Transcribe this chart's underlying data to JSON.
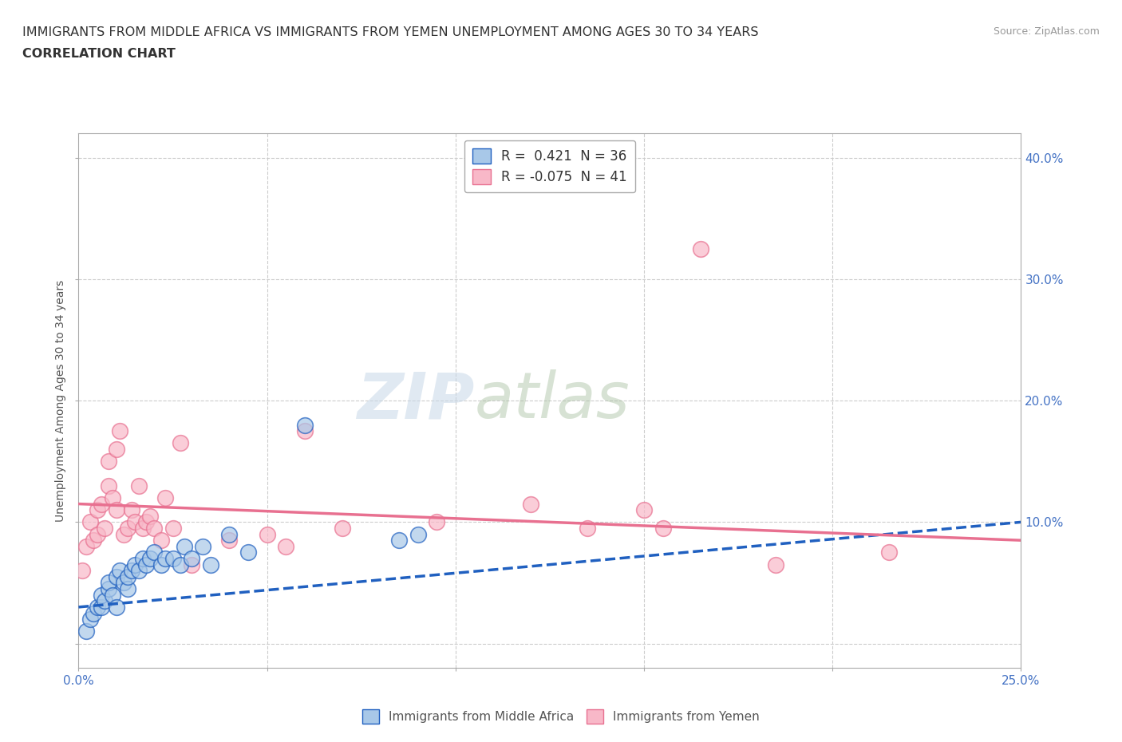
{
  "title_line1": "IMMIGRANTS FROM MIDDLE AFRICA VS IMMIGRANTS FROM YEMEN UNEMPLOYMENT AMONG AGES 30 TO 34 YEARS",
  "title_line2": "CORRELATION CHART",
  "source_text": "Source: ZipAtlas.com",
  "ylabel": "Unemployment Among Ages 30 to 34 years",
  "xlim": [
    0.0,
    0.25
  ],
  "ylim": [
    -0.02,
    0.42
  ],
  "x_ticks": [
    0.0,
    0.05,
    0.1,
    0.15,
    0.2,
    0.25
  ],
  "x_tick_labels": [
    "0.0%",
    "",
    "",
    "",
    "",
    "25.0%"
  ],
  "y_ticks": [
    0.0,
    0.1,
    0.2,
    0.3,
    0.4
  ],
  "y_tick_labels": [
    "",
    "10.0%",
    "20.0%",
    "30.0%",
    "40.0%"
  ],
  "legend_R_blue": "0.421",
  "legend_N_blue": "36",
  "legend_R_pink": "-0.075",
  "legend_N_pink": "41",
  "blue_color": "#a8c8e8",
  "pink_color": "#f8b8c8",
  "blue_line_color": "#2060c0",
  "pink_line_color": "#e87090",
  "watermark_zip": "ZIP",
  "watermark_atlas": "atlas",
  "blue_scatter_x": [
    0.002,
    0.003,
    0.004,
    0.005,
    0.006,
    0.006,
    0.007,
    0.008,
    0.008,
    0.009,
    0.01,
    0.01,
    0.011,
    0.012,
    0.013,
    0.013,
    0.014,
    0.015,
    0.016,
    0.017,
    0.018,
    0.019,
    0.02,
    0.022,
    0.023,
    0.025,
    0.027,
    0.028,
    0.03,
    0.033,
    0.035,
    0.04,
    0.045,
    0.06,
    0.085,
    0.09
  ],
  "blue_scatter_y": [
    0.01,
    0.02,
    0.025,
    0.03,
    0.03,
    0.04,
    0.035,
    0.045,
    0.05,
    0.04,
    0.03,
    0.055,
    0.06,
    0.05,
    0.045,
    0.055,
    0.06,
    0.065,
    0.06,
    0.07,
    0.065,
    0.07,
    0.075,
    0.065,
    0.07,
    0.07,
    0.065,
    0.08,
    0.07,
    0.08,
    0.065,
    0.09,
    0.075,
    0.18,
    0.085,
    0.09
  ],
  "pink_scatter_x": [
    0.001,
    0.002,
    0.003,
    0.004,
    0.005,
    0.005,
    0.006,
    0.007,
    0.008,
    0.008,
    0.009,
    0.01,
    0.01,
    0.011,
    0.012,
    0.013,
    0.014,
    0.015,
    0.016,
    0.017,
    0.018,
    0.019,
    0.02,
    0.022,
    0.023,
    0.025,
    0.027,
    0.03,
    0.04,
    0.05,
    0.055,
    0.06,
    0.07,
    0.095,
    0.12,
    0.135,
    0.15,
    0.155,
    0.165,
    0.185,
    0.215
  ],
  "pink_scatter_y": [
    0.06,
    0.08,
    0.1,
    0.085,
    0.09,
    0.11,
    0.115,
    0.095,
    0.13,
    0.15,
    0.12,
    0.11,
    0.16,
    0.175,
    0.09,
    0.095,
    0.11,
    0.1,
    0.13,
    0.095,
    0.1,
    0.105,
    0.095,
    0.085,
    0.12,
    0.095,
    0.165,
    0.065,
    0.085,
    0.09,
    0.08,
    0.175,
    0.095,
    0.1,
    0.115,
    0.095,
    0.11,
    0.095,
    0.325,
    0.065,
    0.075
  ],
  "blue_trend_x": [
    0.0,
    0.25
  ],
  "blue_trend_y": [
    0.03,
    0.1
  ],
  "pink_trend_x": [
    0.0,
    0.25
  ],
  "pink_trend_y": [
    0.115,
    0.085
  ],
  "grid_color": "#cccccc",
  "background_color": "#ffffff",
  "title_fontsize": 11.5,
  "axis_label_fontsize": 10,
  "tick_fontsize": 11
}
